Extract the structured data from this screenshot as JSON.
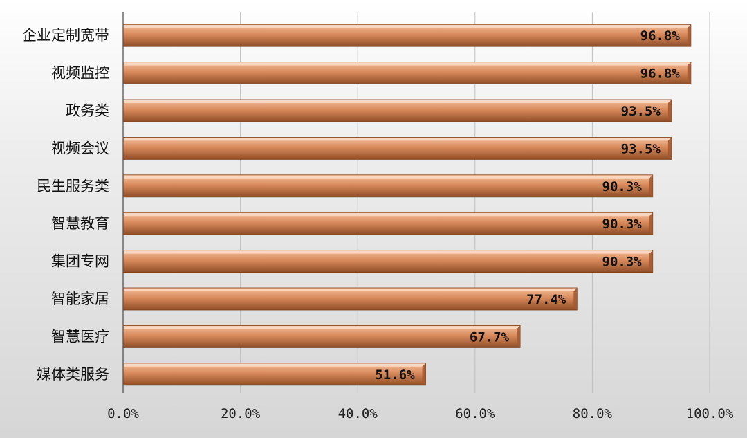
{
  "chart_data": {
    "type": "bar",
    "orientation": "horizontal",
    "categories": [
      "企业定制宽带",
      "视频监控",
      "政务类",
      "视频会议",
      "民生服务类",
      "智慧教育",
      "集团专网",
      "智能家居",
      "智慧医疗",
      "媒体类服务"
    ],
    "values": [
      96.8,
      96.8,
      93.5,
      93.5,
      90.3,
      90.3,
      90.3,
      77.4,
      67.7,
      51.6
    ],
    "data_labels": [
      "96.8%",
      "96.8%",
      "93.5%",
      "93.5%",
      "90.3%",
      "90.3%",
      "90.3%",
      "77.4%",
      "67.7%",
      "51.6%"
    ],
    "x_ticks": [
      "0.0%",
      "20.0%",
      "40.0%",
      "60.0%",
      "80.0%",
      "100.0%"
    ],
    "xlim": [
      0,
      100
    ],
    "title": "",
    "xlabel": "",
    "ylabel": "",
    "grid": "vertical",
    "legend": "none",
    "colors": {
      "bar_light": "#f3c09d",
      "bar_mid": "#d98a5c",
      "bar_dark": "#8f4d26",
      "grid": "#bfbfbf",
      "axis": "#555555"
    }
  }
}
